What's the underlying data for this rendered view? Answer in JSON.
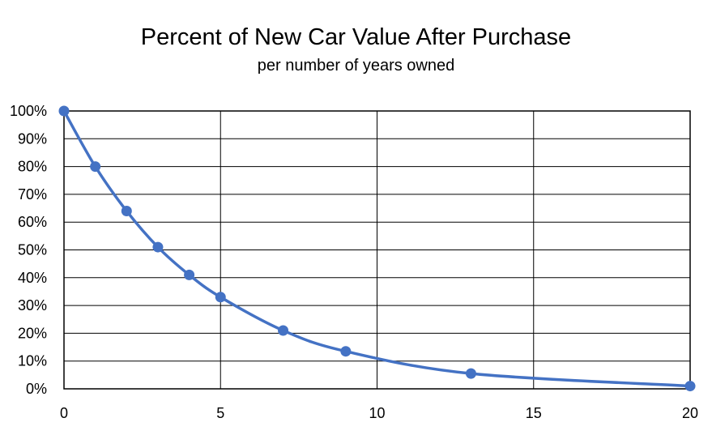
{
  "chart_data": {
    "type": "scatter",
    "title": "Percent of New Car Value After Purchase",
    "subtitle": "per number of years owned",
    "xlabel": "",
    "ylabel": "",
    "xlim": [
      0,
      20
    ],
    "ylim": [
      0,
      100
    ],
    "x_ticks": [
      0,
      5,
      10,
      15,
      20
    ],
    "y_ticks": [
      0,
      10,
      20,
      30,
      40,
      50,
      60,
      70,
      80,
      90,
      100
    ],
    "x_tick_labels": [
      "0",
      "5",
      "10",
      "15",
      "20"
    ],
    "y_tick_labels": [
      "0%",
      "10%",
      "20%",
      "30%",
      "40%",
      "50%",
      "60%",
      "70%",
      "80%",
      "90%",
      "100%"
    ],
    "grid": true,
    "legend": "none",
    "smoothed_line": true,
    "series": [
      {
        "x": [
          0,
          1,
          2,
          3,
          4,
          5,
          7,
          9,
          13,
          20
        ],
        "y": [
          100,
          80,
          64,
          51,
          41,
          33,
          21,
          13.5,
          5.5,
          1
        ],
        "color": "#4472C4"
      }
    ]
  }
}
